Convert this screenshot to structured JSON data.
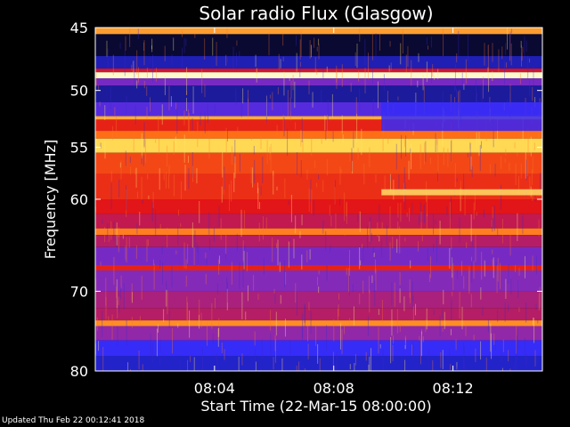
{
  "footer": {
    "updated": "Updated Thu Feb 22 00:12:41 2018"
  },
  "chart_data": {
    "type": "heatmap",
    "title": "Solar radio Flux (Glasgow)",
    "xlabel": "Start Time (22-Mar-15 08:00:00)",
    "ylabel": "Frequency [MHz]",
    "x_unit": "minutes after 08:00:00",
    "xlim": [
      0,
      15
    ],
    "ylim": [
      45,
      80
    ],
    "y_scale": "log",
    "y_inverted": true,
    "x_ticks": [
      {
        "value": 4,
        "label": "08:04"
      },
      {
        "value": 8,
        "label": "08:08"
      },
      {
        "value": 12,
        "label": "08:12"
      }
    ],
    "y_ticks": [
      {
        "value": 45,
        "label": "45"
      },
      {
        "value": 50,
        "label": "50"
      },
      {
        "value": 55,
        "label": "55"
      },
      {
        "value": 60,
        "label": "60"
      },
      {
        "value": 70,
        "label": "70"
      },
      {
        "value": 80,
        "label": "80"
      }
    ],
    "colormap": [
      "#000000",
      "#10105a",
      "#2c2cff",
      "#8a2ab4",
      "#e01018",
      "#ff6a14",
      "#ffd850",
      "#ffffe0"
    ],
    "bands": [
      {
        "f1": 45.0,
        "f2": 45.5,
        "level": 0.78
      },
      {
        "f1": 45.5,
        "f2": 47.2,
        "level": 0.08
      },
      {
        "f1": 47.2,
        "f2": 48.2,
        "level": 0.22
      },
      {
        "f1": 48.2,
        "f2": 48.5,
        "level": 0.55
      },
      {
        "f1": 48.5,
        "f2": 49.0,
        "level": 0.98
      },
      {
        "f1": 49.0,
        "f2": 49.6,
        "level": 0.4
      },
      {
        "f1": 49.6,
        "f2": 51.0,
        "level": 0.2
      },
      {
        "f1": 51.0,
        "f2": 52.2,
        "level": 0.35
      },
      {
        "f1": 52.2,
        "f2": 52.5,
        "level": 0.8
      },
      {
        "f1": 52.5,
        "f2": 53.5,
        "level": 0.6
      },
      {
        "f1": 53.5,
        "f2": 54.2,
        "level": 0.72
      },
      {
        "f1": 54.2,
        "f2": 55.5,
        "level": 0.86
      },
      {
        "f1": 55.5,
        "f2": 57.5,
        "level": 0.66
      },
      {
        "f1": 57.5,
        "f2": 60.0,
        "level": 0.62
      },
      {
        "f1": 60.0,
        "f2": 61.5,
        "level": 0.58
      },
      {
        "f1": 61.5,
        "f2": 63.0,
        "level": 0.52
      },
      {
        "f1": 63.0,
        "f2": 63.7,
        "level": 0.74
      },
      {
        "f1": 63.7,
        "f2": 65.0,
        "level": 0.5
      },
      {
        "f1": 65.0,
        "f2": 67.0,
        "level": 0.4
      },
      {
        "f1": 67.0,
        "f2": 67.6,
        "level": 0.6
      },
      {
        "f1": 67.6,
        "f2": 70.0,
        "level": 0.42
      },
      {
        "f1": 70.0,
        "f2": 72.0,
        "level": 0.48
      },
      {
        "f1": 72.0,
        "f2": 73.5,
        "level": 0.5
      },
      {
        "f1": 73.5,
        "f2": 74.2,
        "level": 0.76
      },
      {
        "f1": 74.2,
        "f2": 76.0,
        "level": 0.44
      },
      {
        "f1": 76.0,
        "f2": 78.0,
        "level": 0.3
      },
      {
        "f1": 78.0,
        "f2": 80.0,
        "level": 0.24
      }
    ],
    "features": [
      {
        "label": "",
        "t1": 9.6,
        "t2": 15.0,
        "f1": 59.0,
        "f2": 59.6,
        "level": 0.88
      },
      {
        "label": "",
        "t1": 9.6,
        "t2": 15.0,
        "f1": 51.0,
        "f2": 53.5,
        "level": 0.3
      }
    ]
  }
}
